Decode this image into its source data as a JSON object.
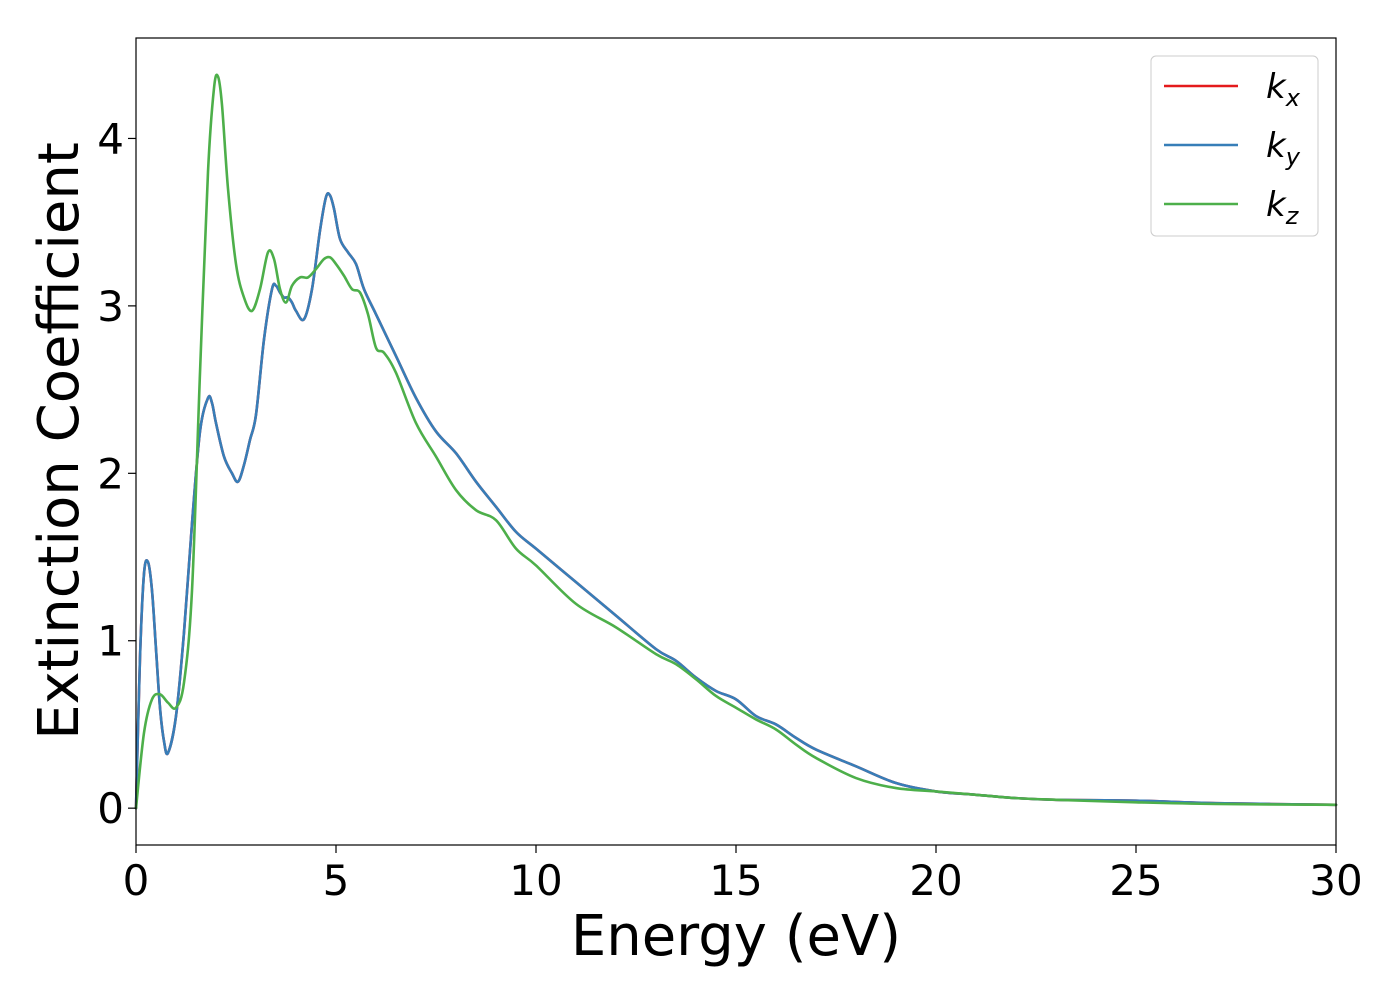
{
  "chart_data": {
    "type": "line",
    "title": "",
    "xlabel": "Energy (eV)",
    "ylabel": "Extinction Coefficient",
    "xlim": [
      0,
      30
    ],
    "ylim": [
      -0.22,
      4.6
    ],
    "xticks": [
      0,
      5,
      10,
      15,
      20,
      25,
      30
    ],
    "xtick_labels": [
      "0",
      "5",
      "10",
      "15",
      "20",
      "25",
      "30"
    ],
    "yticks": [
      0,
      1,
      2,
      3,
      4
    ],
    "ytick_labels": [
      "0",
      "1",
      "2",
      "3",
      "4"
    ],
    "grid": false,
    "legend_position": "top-right",
    "series": [
      {
        "name": "k",
        "subscript": "x",
        "color": "#e41a1c",
        "x": [
          0,
          0.1,
          0.2,
          0.3,
          0.4,
          0.5,
          0.6,
          0.7,
          0.8,
          1.0,
          1.2,
          1.4,
          1.6,
          1.8,
          1.9,
          2.0,
          2.2,
          2.4,
          2.55,
          2.7,
          2.85,
          3.0,
          3.2,
          3.4,
          3.5,
          3.6,
          3.7,
          3.8,
          3.9,
          4.0,
          4.2,
          4.4,
          4.6,
          4.75,
          4.85,
          4.95,
          5.1,
          5.3,
          5.5,
          5.7,
          6.0,
          6.5,
          7.0,
          7.5,
          8.0,
          8.5,
          9.0,
          9.5,
          10,
          11,
          12,
          13,
          13.5,
          14,
          14.5,
          15,
          15.5,
          16,
          16.5,
          17,
          18,
          19,
          20,
          21,
          22,
          23,
          25,
          27,
          30
        ],
        "y": [
          0.0,
          0.9,
          1.4,
          1.47,
          1.3,
          0.95,
          0.6,
          0.4,
          0.33,
          0.55,
          1.05,
          1.7,
          2.25,
          2.45,
          2.42,
          2.3,
          2.1,
          2.0,
          1.95,
          2.05,
          2.2,
          2.35,
          2.8,
          3.1,
          3.12,
          3.08,
          3.05,
          3.05,
          3.02,
          2.97,
          2.92,
          3.1,
          3.45,
          3.65,
          3.66,
          3.58,
          3.4,
          3.32,
          3.25,
          3.1,
          2.95,
          2.7,
          2.45,
          2.25,
          2.12,
          1.95,
          1.8,
          1.65,
          1.55,
          1.35,
          1.15,
          0.95,
          0.88,
          0.78,
          0.7,
          0.65,
          0.55,
          0.5,
          0.42,
          0.35,
          0.25,
          0.15,
          0.1,
          0.08,
          0.06,
          0.05,
          0.045,
          0.03,
          0.02
        ]
      },
      {
        "name": "k",
        "subscript": "y",
        "color": "#377eb8",
        "x": [
          0,
          0.1,
          0.2,
          0.3,
          0.4,
          0.5,
          0.6,
          0.7,
          0.8,
          1.0,
          1.2,
          1.4,
          1.6,
          1.8,
          1.9,
          2.0,
          2.2,
          2.4,
          2.55,
          2.7,
          2.85,
          3.0,
          3.2,
          3.4,
          3.5,
          3.6,
          3.7,
          3.8,
          3.9,
          4.0,
          4.2,
          4.4,
          4.6,
          4.75,
          4.85,
          4.95,
          5.1,
          5.3,
          5.5,
          5.7,
          6.0,
          6.5,
          7.0,
          7.5,
          8.0,
          8.5,
          9.0,
          9.5,
          10,
          11,
          12,
          13,
          13.5,
          14,
          14.5,
          15,
          15.5,
          16,
          16.5,
          17,
          18,
          19,
          20,
          21,
          22,
          23,
          25,
          27,
          30
        ],
        "y": [
          0.0,
          0.9,
          1.4,
          1.47,
          1.3,
          0.95,
          0.6,
          0.4,
          0.33,
          0.55,
          1.05,
          1.7,
          2.25,
          2.45,
          2.42,
          2.3,
          2.1,
          2.0,
          1.95,
          2.05,
          2.2,
          2.35,
          2.8,
          3.1,
          3.12,
          3.08,
          3.05,
          3.05,
          3.02,
          2.97,
          2.92,
          3.1,
          3.45,
          3.65,
          3.66,
          3.58,
          3.4,
          3.32,
          3.25,
          3.1,
          2.95,
          2.7,
          2.45,
          2.25,
          2.12,
          1.95,
          1.8,
          1.65,
          1.55,
          1.35,
          1.15,
          0.95,
          0.88,
          0.78,
          0.7,
          0.65,
          0.55,
          0.5,
          0.42,
          0.35,
          0.25,
          0.15,
          0.1,
          0.08,
          0.06,
          0.05,
          0.045,
          0.03,
          0.02
        ]
      },
      {
        "name": "k",
        "subscript": "z",
        "color": "#4daf4a",
        "x": [
          0,
          0.2,
          0.4,
          0.6,
          0.8,
          1.0,
          1.2,
          1.4,
          1.6,
          1.8,
          1.95,
          2.05,
          2.15,
          2.3,
          2.5,
          2.7,
          2.9,
          3.1,
          3.3,
          3.45,
          3.6,
          3.75,
          3.9,
          4.1,
          4.3,
          4.5,
          4.7,
          4.85,
          5.0,
          5.2,
          5.4,
          5.6,
          5.8,
          6.0,
          6.2,
          6.5,
          7.0,
          7.5,
          8.0,
          8.5,
          9.0,
          9.5,
          10,
          11,
          12,
          13,
          13.5,
          14,
          14.5,
          15,
          15.5,
          16,
          16.5,
          17,
          18,
          19,
          20,
          21,
          22,
          23,
          25,
          27,
          30
        ],
        "y": [
          0.0,
          0.45,
          0.65,
          0.68,
          0.63,
          0.6,
          0.75,
          1.3,
          2.6,
          3.8,
          4.3,
          4.37,
          4.2,
          3.7,
          3.25,
          3.05,
          2.97,
          3.1,
          3.32,
          3.28,
          3.1,
          3.02,
          3.12,
          3.17,
          3.17,
          3.22,
          3.28,
          3.29,
          3.25,
          3.18,
          3.1,
          3.08,
          2.95,
          2.75,
          2.72,
          2.6,
          2.3,
          2.1,
          1.9,
          1.78,
          1.72,
          1.55,
          1.45,
          1.22,
          1.08,
          0.92,
          0.86,
          0.77,
          0.67,
          0.6,
          0.53,
          0.47,
          0.38,
          0.3,
          0.18,
          0.12,
          0.1,
          0.08,
          0.06,
          0.05,
          0.035,
          0.025,
          0.02
        ]
      }
    ]
  }
}
